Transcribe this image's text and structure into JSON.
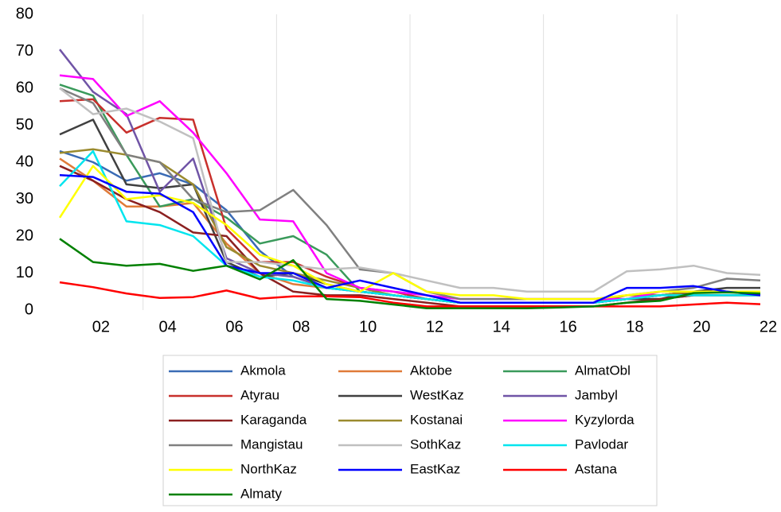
{
  "chart_data": {
    "type": "line",
    "categories": [
      null,
      "02",
      null,
      "04",
      null,
      "06",
      null,
      "08",
      null,
      "10",
      null,
      "12",
      null,
      "14",
      null,
      "16",
      null,
      "18",
      null,
      "20",
      null,
      "22"
    ],
    "ylim": [
      0,
      80
    ],
    "yticks": [
      0,
      10,
      20,
      30,
      40,
      50,
      60,
      70,
      80
    ],
    "grid": true,
    "legend": "bottom",
    "series": [
      {
        "name": "Akmola",
        "color": "#3a6bb5",
        "values": [
          43,
          40,
          35,
          37,
          34,
          27,
          16,
          9,
          6,
          5,
          4,
          3,
          2,
          2,
          2,
          2,
          2,
          3,
          3,
          4,
          4,
          4
        ]
      },
      {
        "name": "Aktobe",
        "color": "#e07b39",
        "values": [
          41,
          35,
          28,
          28,
          29,
          18,
          10,
          7,
          6,
          5,
          4,
          3,
          2,
          2,
          2,
          2,
          2,
          3,
          3,
          4,
          4,
          4
        ]
      },
      {
        "name": "AlmatObl",
        "color": "#3a9a5b",
        "values": [
          61,
          58,
          42,
          28,
          30,
          25,
          18,
          20,
          15,
          5,
          4,
          3,
          2,
          2,
          2,
          2,
          2,
          3,
          4,
          5,
          5,
          5
        ]
      },
      {
        "name": "Atyrau",
        "color": "#c8302c",
        "values": [
          56.5,
          57,
          48,
          52,
          51.5,
          22,
          13,
          13,
          9,
          6,
          5,
          3,
          2,
          2,
          2,
          2,
          2,
          3,
          4,
          5,
          5,
          5
        ]
      },
      {
        "name": "WestKaz",
        "color": "#404040",
        "values": [
          47.5,
          51.5,
          34,
          33,
          34,
          13,
          9,
          10,
          7,
          5,
          4,
          3,
          2,
          2,
          2,
          2,
          2,
          3,
          3,
          5,
          6,
          6
        ]
      },
      {
        "name": "Jambyl",
        "color": "#7054a6",
        "values": [
          70.5,
          59,
          53,
          32,
          41,
          14,
          10,
          9,
          6,
          5,
          4,
          3,
          2,
          2,
          2,
          2,
          2,
          3,
          4,
          5,
          5,
          5
        ]
      },
      {
        "name": "Karaganda",
        "color": "#8b2020",
        "values": [
          39,
          35,
          30,
          26.5,
          21,
          20,
          10,
          5,
          4,
          4,
          3,
          2,
          1,
          1,
          1,
          1,
          1,
          2,
          3,
          4,
          4,
          4
        ]
      },
      {
        "name": "Kostanai",
        "color": "#9a8a2e",
        "values": [
          42.5,
          43.5,
          42,
          40,
          34,
          17,
          12,
          10,
          8,
          6,
          4,
          3,
          2,
          2,
          2,
          2,
          2,
          4,
          4,
          5,
          5,
          5
        ]
      },
      {
        "name": "Kyzylorda",
        "color": "#ff00ff",
        "values": [
          63.5,
          62.5,
          52.5,
          56.5,
          48,
          37,
          24.5,
          24,
          10,
          6,
          5,
          4,
          3,
          3,
          3,
          3,
          3,
          3,
          5,
          5,
          5,
          5
        ]
      },
      {
        "name": "Mangistau",
        "color": "#808080",
        "values": [
          60,
          56,
          42,
          40,
          30,
          26.5,
          27,
          32.5,
          23,
          11,
          10,
          5,
          3,
          3,
          3,
          3,
          3,
          4,
          5,
          6,
          8.5,
          8
        ]
      },
      {
        "name": "SothKaz",
        "color": "#c0c0c0",
        "values": [
          60,
          53,
          54.5,
          51,
          46.5,
          13,
          13,
          12,
          11,
          11.5,
          10,
          8,
          6,
          6,
          5,
          5,
          5,
          10.5,
          11,
          12,
          10,
          9.5
        ]
      },
      {
        "name": "Pavlodar",
        "color": "#00e5ee",
        "values": [
          33.5,
          43,
          24,
          23,
          20,
          12,
          9,
          8,
          6,
          5,
          4,
          3,
          2,
          2,
          2,
          2,
          2,
          3,
          4,
          4,
          4,
          4
        ]
      },
      {
        "name": "NorthKaz",
        "color": "#ffff00",
        "values": [
          25,
          39,
          30,
          31,
          29,
          23,
          15,
          12,
          7,
          5,
          10,
          5,
          4,
          4,
          3,
          3,
          3,
          4,
          5,
          5,
          5,
          5
        ]
      },
      {
        "name": "EastKaz",
        "color": "#0000ff",
        "values": [
          36.5,
          36,
          32,
          31.5,
          26.5,
          12,
          10,
          10,
          6,
          8,
          6,
          4,
          2,
          2,
          2,
          2,
          2,
          6,
          6,
          6.5,
          5,
          4
        ]
      },
      {
        "name": "Astana",
        "color": "#ff0000",
        "values": [
          7.5,
          6.2,
          4.5,
          3.3,
          3.5,
          5.3,
          3.1,
          3.7,
          3.7,
          3.5,
          2,
          1,
          1,
          1,
          1,
          1,
          1,
          1,
          1,
          1.5,
          2,
          1.6
        ]
      },
      {
        "name": "Almaty",
        "color": "#008000",
        "values": [
          19.3,
          13,
          12,
          12.5,
          10.6,
          12,
          8.3,
          13.5,
          3,
          2.5,
          1.5,
          0.5,
          0.5,
          0.5,
          0.5,
          0.7,
          1,
          2,
          2.5,
          4.6,
          4.8,
          4.5
        ]
      }
    ]
  }
}
